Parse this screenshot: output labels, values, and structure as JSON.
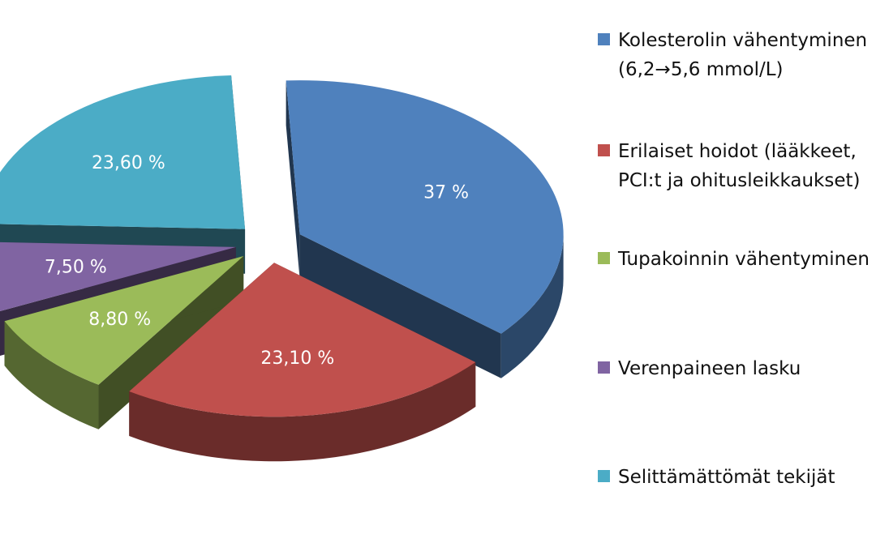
{
  "chart_data": {
    "type": "pie",
    "style": "3d-exploded",
    "slices": [
      {
        "label": "Kolesterolin vähentyminen\n(6,2→5,6 mmol/L)",
        "value": 37,
        "display": "37 %",
        "color": "#4F81BD"
      },
      {
        "label": "Erilaiset hoidot (lääkkeet,\nPCI:t ja ohitusleikkaukset)",
        "value": 23.1,
        "display": "23,10 %",
        "color": "#C0504D"
      },
      {
        "label": "Tupakoinnin vähentyminen",
        "value": 8.8,
        "display": "8,80 %",
        "color": "#9BBB59"
      },
      {
        "label": "Verenpaineen lasku",
        "value": 7.5,
        "display": "7,50 %",
        "color": "#8064A2"
      },
      {
        "label": "Selittämättömät tekijät",
        "value": 23.6,
        "display": "23,60 %",
        "color": "#4BACC6"
      }
    ],
    "legend_position": "right"
  }
}
